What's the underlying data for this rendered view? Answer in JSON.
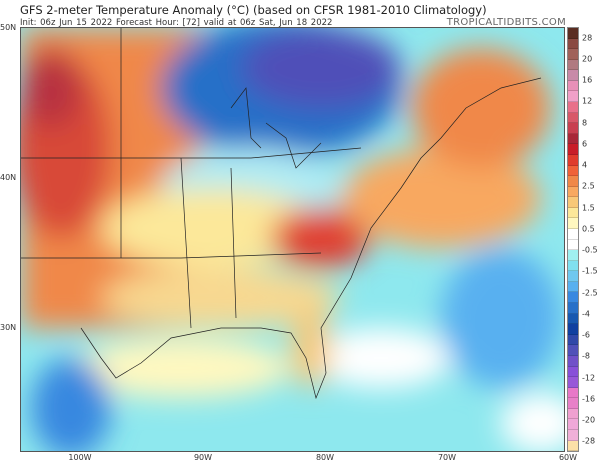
{
  "header": {
    "title": "GFS 2-meter Temperature Anomaly (°C) (based on CFSR 1981-2010 Climatology)",
    "subtitle": "Init: 06z Jun 15 2022   Forecast Hour: [72]   valid at 06z Sat, Jun 18 2022",
    "brand": "TROPICALTIDBITS.COM"
  },
  "axes": {
    "lat_labels": [
      "50N",
      "40N",
      "30N"
    ],
    "lon_labels": [
      "100W",
      "90W",
      "80W",
      "70W",
      "60W"
    ]
  },
  "colorbar": {
    "labels": [
      "28",
      "20",
      "16",
      "12",
      "8",
      "6",
      "4",
      "2.5",
      "1.5",
      "0.5",
      "-0.5",
      "-1.5",
      "-2.5",
      "-4",
      "-6",
      "-8",
      "-12",
      "-16",
      "-20",
      "-28"
    ],
    "colors": [
      "#5a2d22",
      "#8a4a42",
      "#a0625a",
      "#b07a80",
      "#c88aa8",
      "#e890b8",
      "#f0a0c8",
      "#e8708a",
      "#d85868",
      "#c84050",
      "#a82838",
      "#c81e28",
      "#e03c2c",
      "#f06238",
      "#f08848",
      "#f8a860",
      "#f8c878",
      "#fce89a",
      "#fff8c0",
      "#ffffff",
      "#ffffff",
      "#a0f0f0",
      "#80e0f0",
      "#70c8f0",
      "#58b0f0",
      "#3888e0",
      "#2870c8",
      "#1858b0",
      "#1040a0",
      "#3048a8",
      "#5050b8",
      "#7050c8",
      "#8850d8",
      "#9858d8",
      "#e878c8",
      "#e880c8",
      "#f0a0d0",
      "#f0a8d8",
      "#f0b0d8",
      "#fce0a8"
    ]
  }
}
